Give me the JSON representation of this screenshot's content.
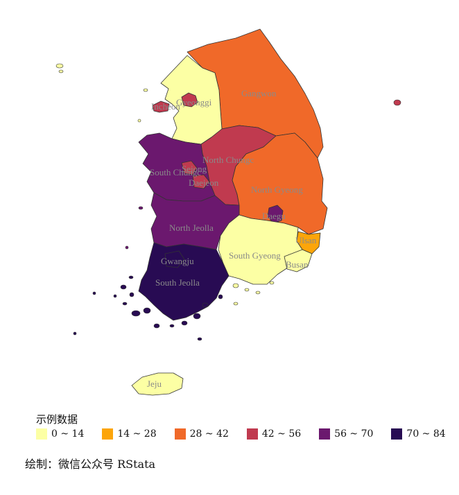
{
  "legend": {
    "title": "示例数据",
    "items": [
      {
        "label": "0 ~ 14",
        "color": "#FCFFA4"
      },
      {
        "label": "14 ~ 28",
        "color": "#FCA50A"
      },
      {
        "label": "28 ~ 42",
        "color": "#F06929"
      },
      {
        "label": "42 ~ 56",
        "color": "#C03A4F"
      },
      {
        "label": "56 ~ 70",
        "color": "#6B186E"
      },
      {
        "label": "70 ~ 84",
        "color": "#280B53"
      }
    ]
  },
  "caption": "绘制：微信公众号 RStata",
  "regions": [
    {
      "id": "gyeonggi",
      "label": "Gyeonggi",
      "color": "#FCFFA4"
    },
    {
      "id": "incheon",
      "label": "Incheon",
      "color": "#C03A4F"
    },
    {
      "id": "seoul",
      "label": "Seoul",
      "color": "#C03A4F"
    },
    {
      "id": "gangwon",
      "label": "Gangwon",
      "color": "#F06929"
    },
    {
      "id": "north-chungcheong",
      "label": "North Chungc",
      "color": "#C03A4F"
    },
    {
      "id": "south-chungcheong",
      "label": "South Chungc",
      "color": "#6B186E"
    },
    {
      "id": "sejong",
      "label": "Sejong",
      "color": "#C03A4F"
    },
    {
      "id": "daejeon",
      "label": "Daejeon",
      "color": "#C03A4F"
    },
    {
      "id": "north-gyeongsang",
      "label": "North Gyeong",
      "color": "#F06929"
    },
    {
      "id": "daegu",
      "label": "Daegu",
      "color": "#6B186E"
    },
    {
      "id": "ulsan",
      "label": "Ulsan",
      "color": "#FCA50A"
    },
    {
      "id": "north-jeolla",
      "label": "North Jeolla",
      "color": "#6B186E"
    },
    {
      "id": "south-gyeongsang",
      "label": "South Gyeong",
      "color": "#FCFFA4"
    },
    {
      "id": "busan",
      "label": "Busan",
      "color": "#FCFFA4"
    },
    {
      "id": "gwangju",
      "label": "Gwangju",
      "color": "#280B53"
    },
    {
      "id": "south-jeolla",
      "label": "South Jeolla",
      "color": "#280B53"
    },
    {
      "id": "jeju",
      "label": "Jeju",
      "color": "#FCFFA4"
    }
  ]
}
